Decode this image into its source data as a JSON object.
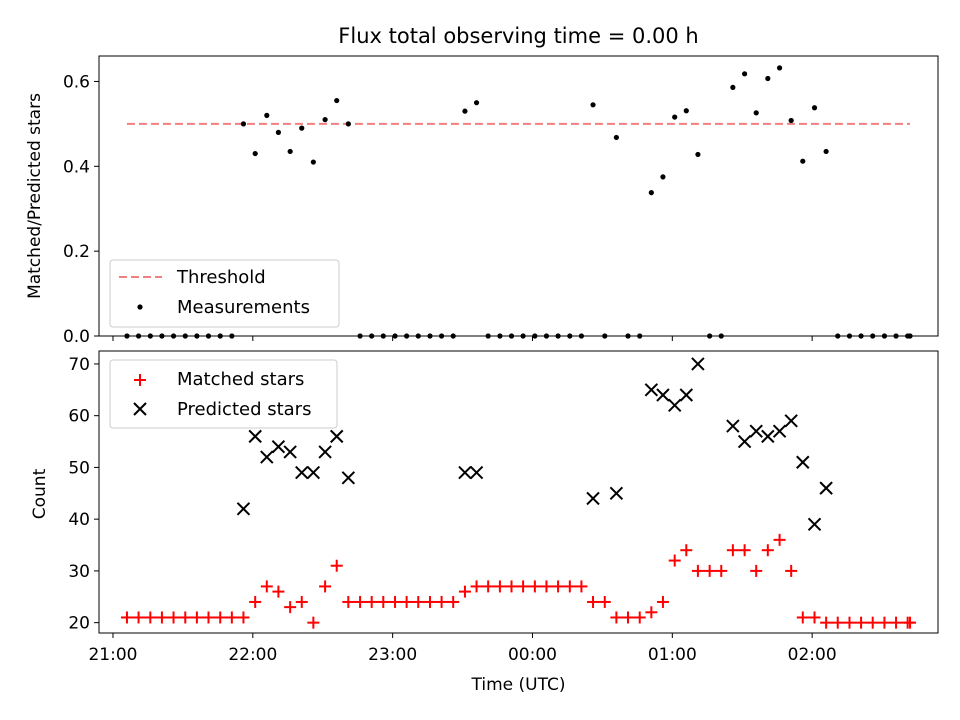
{
  "title": "Flux total observing time = 0.00 h",
  "chart_data": [
    {
      "type": "scatter",
      "ylabel": "Matched/Predicted stars",
      "ylim": [
        0,
        0.66
      ],
      "yticks": [
        "0.0",
        "0.2",
        "0.4",
        "0.6"
      ],
      "xlim": [
        -0.1,
        5.9
      ],
      "legend_position": "lower-left",
      "threshold": {
        "name": "Threshold",
        "value": 0.5,
        "x_start": 0.1,
        "x_end": 5.7,
        "color": "#f08080"
      },
      "measurements": {
        "name": "Measurements",
        "color": "#000000",
        "points": [
          [
            0.1,
            0.0
          ],
          [
            0.183,
            0.0
          ],
          [
            0.267,
            0.0
          ],
          [
            0.35,
            0.0
          ],
          [
            0.433,
            0.0
          ],
          [
            0.517,
            0.0
          ],
          [
            0.6,
            0.0
          ],
          [
            0.683,
            0.0
          ],
          [
            0.767,
            0.0
          ],
          [
            0.85,
            0.0
          ],
          [
            0.933,
            0.5
          ],
          [
            1.017,
            0.43
          ],
          [
            1.1,
            0.52
          ],
          [
            1.183,
            0.48
          ],
          [
            1.267,
            0.435
          ],
          [
            1.35,
            0.49
          ],
          [
            1.433,
            0.41
          ],
          [
            1.517,
            0.51
          ],
          [
            1.6,
            0.555
          ],
          [
            1.683,
            0.5
          ],
          [
            1.767,
            0.0
          ],
          [
            1.85,
            0.0
          ],
          [
            1.933,
            0.0
          ],
          [
            2.017,
            0.0
          ],
          [
            2.1,
            0.0
          ],
          [
            2.183,
            0.0
          ],
          [
            2.267,
            0.0
          ],
          [
            2.35,
            0.0
          ],
          [
            2.433,
            0.0
          ],
          [
            2.517,
            0.53
          ],
          [
            2.6,
            0.55
          ],
          [
            2.683,
            0.0
          ],
          [
            2.767,
            0.0
          ],
          [
            2.85,
            0.0
          ],
          [
            2.933,
            0.0
          ],
          [
            3.017,
            0.0
          ],
          [
            3.1,
            0.0
          ],
          [
            3.183,
            0.0
          ],
          [
            3.267,
            0.0
          ],
          [
            3.35,
            0.0
          ],
          [
            3.433,
            0.545
          ],
          [
            3.517,
            0.0
          ],
          [
            3.6,
            0.468
          ],
          [
            3.683,
            0.0
          ],
          [
            3.767,
            0.0
          ],
          [
            3.85,
            0.338
          ],
          [
            3.933,
            0.375
          ],
          [
            4.017,
            0.516
          ],
          [
            4.1,
            0.531
          ],
          [
            4.183,
            0.428
          ],
          [
            4.267,
            0.0
          ],
          [
            4.35,
            0.0
          ],
          [
            4.433,
            0.586
          ],
          [
            4.517,
            0.618
          ],
          [
            4.6,
            0.526
          ],
          [
            4.683,
            0.607
          ],
          [
            4.767,
            0.632
          ],
          [
            4.85,
            0.508
          ],
          [
            4.933,
            0.412
          ],
          [
            5.017,
            0.538
          ],
          [
            5.1,
            0.435
          ],
          [
            5.183,
            0.0
          ],
          [
            5.267,
            0.0
          ],
          [
            5.35,
            0.0
          ],
          [
            5.433,
            0.0
          ],
          [
            5.517,
            0.0
          ],
          [
            5.6,
            0.0
          ],
          [
            5.683,
            0.0
          ],
          [
            5.7,
            0.0
          ]
        ]
      }
    },
    {
      "type": "scatter",
      "xlabel": "Time (UTC)",
      "ylabel": "Count",
      "ylim": [
        18,
        72.5
      ],
      "yticks": [
        "20",
        "30",
        "40",
        "50",
        "60",
        "70"
      ],
      "xlim": [
        -0.1,
        5.9
      ],
      "xticks": [
        "21:00",
        "22:00",
        "23:00",
        "00:00",
        "01:00",
        "02:00"
      ],
      "legend_position": "upper-left",
      "matched": {
        "name": "Matched stars",
        "color": "#ff0000",
        "points": [
          [
            0.1,
            21
          ],
          [
            0.183,
            21
          ],
          [
            0.267,
            21
          ],
          [
            0.35,
            21
          ],
          [
            0.433,
            21
          ],
          [
            0.517,
            21
          ],
          [
            0.6,
            21
          ],
          [
            0.683,
            21
          ],
          [
            0.767,
            21
          ],
          [
            0.85,
            21
          ],
          [
            0.933,
            21
          ],
          [
            1.017,
            24
          ],
          [
            1.1,
            27
          ],
          [
            1.183,
            26
          ],
          [
            1.267,
            23
          ],
          [
            1.35,
            24
          ],
          [
            1.433,
            20
          ],
          [
            1.517,
            27
          ],
          [
            1.6,
            31
          ],
          [
            1.683,
            24
          ],
          [
            1.767,
            24
          ],
          [
            1.85,
            24
          ],
          [
            1.933,
            24
          ],
          [
            2.017,
            24
          ],
          [
            2.1,
            24
          ],
          [
            2.183,
            24
          ],
          [
            2.267,
            24
          ],
          [
            2.35,
            24
          ],
          [
            2.433,
            24
          ],
          [
            2.517,
            26
          ],
          [
            2.6,
            27
          ],
          [
            2.683,
            27
          ],
          [
            2.767,
            27
          ],
          [
            2.85,
            27
          ],
          [
            2.933,
            27
          ],
          [
            3.017,
            27
          ],
          [
            3.1,
            27
          ],
          [
            3.183,
            27
          ],
          [
            3.267,
            27
          ],
          [
            3.35,
            27
          ],
          [
            3.433,
            24
          ],
          [
            3.517,
            24
          ],
          [
            3.6,
            21
          ],
          [
            3.683,
            21
          ],
          [
            3.767,
            21
          ],
          [
            3.85,
            22
          ],
          [
            3.933,
            24
          ],
          [
            4.017,
            32
          ],
          [
            4.1,
            34
          ],
          [
            4.183,
            30
          ],
          [
            4.267,
            30
          ],
          [
            4.35,
            30
          ],
          [
            4.433,
            34
          ],
          [
            4.517,
            34
          ],
          [
            4.6,
            30
          ],
          [
            4.683,
            34
          ],
          [
            4.767,
            36
          ],
          [
            4.85,
            30
          ],
          [
            4.933,
            21
          ],
          [
            5.017,
            21
          ],
          [
            5.1,
            20
          ],
          [
            5.183,
            20
          ],
          [
            5.267,
            20
          ],
          [
            5.35,
            20
          ],
          [
            5.433,
            20
          ],
          [
            5.517,
            20
          ],
          [
            5.6,
            20
          ],
          [
            5.683,
            20
          ],
          [
            5.7,
            20
          ]
        ]
      },
      "predicted": {
        "name": "Predicted stars",
        "color": "#000000",
        "points": [
          [
            0.933,
            42
          ],
          [
            1.017,
            56
          ],
          [
            1.1,
            52
          ],
          [
            1.183,
            54
          ],
          [
            1.267,
            53
          ],
          [
            1.35,
            49
          ],
          [
            1.433,
            49
          ],
          [
            1.517,
            53
          ],
          [
            1.6,
            56
          ],
          [
            1.683,
            48
          ],
          [
            2.517,
            49
          ],
          [
            2.6,
            49
          ],
          [
            3.433,
            44
          ],
          [
            3.6,
            45
          ],
          [
            3.85,
            65
          ],
          [
            3.933,
            64
          ],
          [
            4.017,
            62
          ],
          [
            4.1,
            64
          ],
          [
            4.183,
            70
          ],
          [
            4.433,
            58
          ],
          [
            4.517,
            55
          ],
          [
            4.6,
            57
          ],
          [
            4.683,
            56
          ],
          [
            4.767,
            57
          ],
          [
            4.85,
            59
          ],
          [
            4.933,
            51
          ],
          [
            5.017,
            39
          ],
          [
            5.1,
            46
          ]
        ]
      }
    }
  ]
}
